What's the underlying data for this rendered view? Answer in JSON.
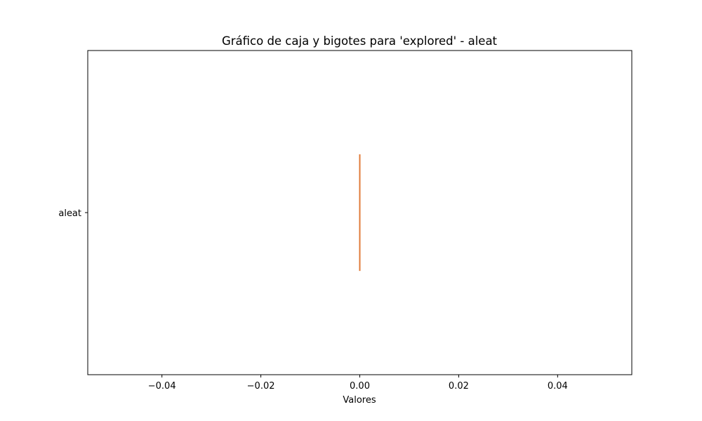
{
  "chart_data": {
    "type": "box",
    "orientation": "horizontal",
    "title": "Gráfico de caja y bigotes para 'explored' - aleat",
    "xlabel": "Valores",
    "ylabel": "",
    "xlim": [
      -0.055,
      0.055
    ],
    "xticks": [
      -0.04,
      -0.02,
      0.0,
      0.02,
      0.04
    ],
    "xtick_labels": [
      "−0.04",
      "−0.02",
      "0.00",
      "0.02",
      "0.04"
    ],
    "grid": false,
    "categories": [
      "aleat"
    ],
    "series": [
      {
        "name": "aleat",
        "min": 0.0,
        "q1": 0.0,
        "median": 0.0,
        "q3": 0.0,
        "max": 0.0
      }
    ],
    "colors": {
      "box": "#000000",
      "median": "#e07b39",
      "frame": "#000000"
    }
  }
}
